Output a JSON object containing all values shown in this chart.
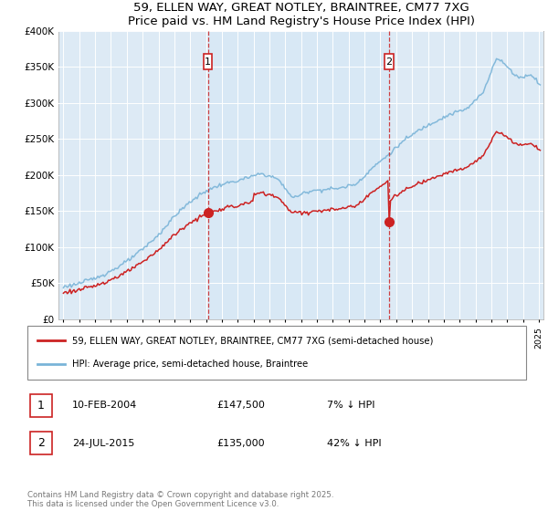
{
  "title": "59, ELLEN WAY, GREAT NOTLEY, BRAINTREE, CM77 7XG",
  "subtitle": "Price paid vs. HM Land Registry's House Price Index (HPI)",
  "legend_line1": "59, ELLEN WAY, GREAT NOTLEY, BRAINTREE, CM77 7XG (semi-detached house)",
  "legend_line2": "HPI: Average price, semi-detached house, Braintree",
  "sale1_date": "10-FEB-2004",
  "sale1_price": 147500,
  "sale1_pct": "7% ↓ HPI",
  "sale1_year": 2004.12,
  "sale2_date": "24-JUL-2015",
  "sale2_price": 135000,
  "sale2_pct": "42% ↓ HPI",
  "sale2_year": 2015.55,
  "hpi_color": "#7ab4d8",
  "price_color": "#cc2222",
  "shade_color": "#d8e8f5",
  "background_color": "#ddeaf5",
  "copyright": "Contains HM Land Registry data © Crown copyright and database right 2025.\nThis data is licensed under the Open Government Licence v3.0.",
  "ylim": [
    0,
    400000
  ],
  "xlim_start": 1994.7,
  "xlim_end": 2025.3
}
